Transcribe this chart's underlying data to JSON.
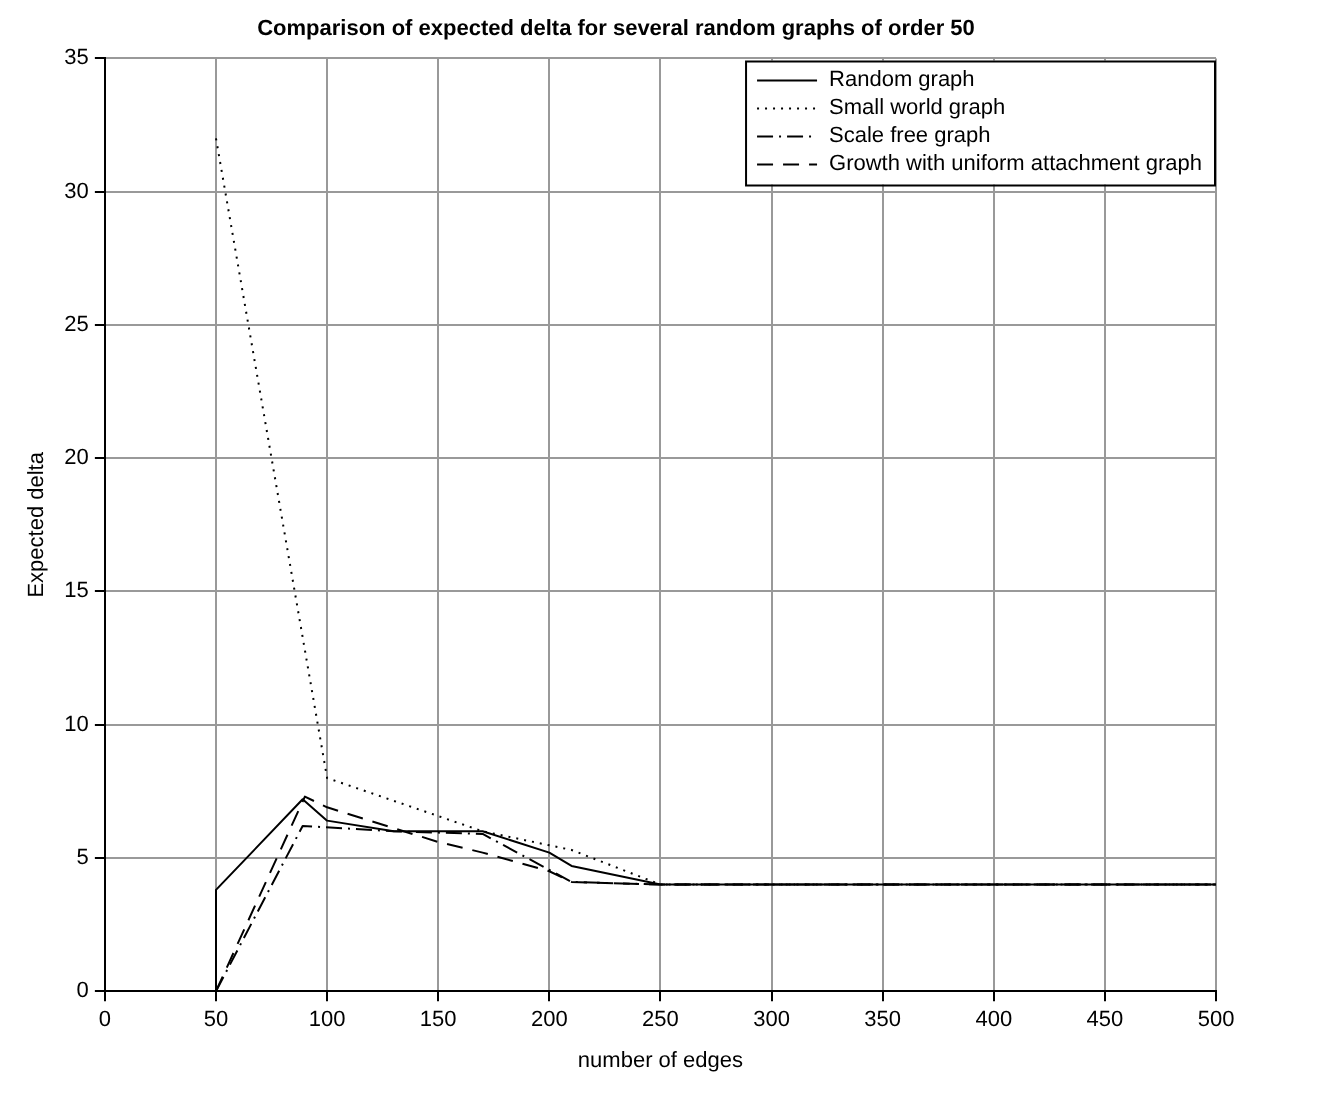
{
  "chart_data": {
    "type": "line",
    "title": "Comparison of expected delta for several random graphs of order 50",
    "xlabel": "number of edges",
    "ylabel": "Expected delta",
    "xlim": [
      0,
      500
    ],
    "xticks": [
      0,
      50,
      100,
      150,
      200,
      250,
      300,
      350,
      400,
      450,
      500
    ],
    "ylim": [
      0,
      35
    ],
    "yticks": [
      0,
      5,
      10,
      15,
      20,
      25,
      30,
      35
    ],
    "grid": true,
    "legend": "top right",
    "marker": "none",
    "series": [
      {
        "name": "Random graph",
        "color": "#000000",
        "line_style": "solid",
        "x": [
          50,
          50,
          89,
          100,
          130,
          170,
          200,
          210,
          250,
          500
        ],
        "values": [
          0,
          3.8,
          7.2,
          6.4,
          6,
          6,
          5.2,
          4.7,
          4,
          4
        ]
      },
      {
        "name": "Small world graph",
        "color": "#000000",
        "line_style": "dotted",
        "x": [
          50,
          100,
          170,
          210,
          250,
          500
        ],
        "values": [
          32,
          8,
          6,
          5.3,
          4,
          4
        ]
      },
      {
        "name": "Scale free graph",
        "color": "#000000",
        "line_style": "dashdot",
        "x": [
          50,
          89,
          130,
          170,
          210,
          250,
          500
        ],
        "values": [
          0,
          6.2,
          6,
          5.9,
          4.1,
          4,
          4
        ]
      },
      {
        "name": "Growth with uniform attachment graph",
        "color": "#000000",
        "line_style": "dashed",
        "x": [
          50,
          90,
          100,
          150,
          170,
          200,
          210,
          250,
          500
        ],
        "values": [
          0,
          7.3,
          6.9,
          5.6,
          5.2,
          4.5,
          4.1,
          4,
          4
        ]
      }
    ]
  }
}
